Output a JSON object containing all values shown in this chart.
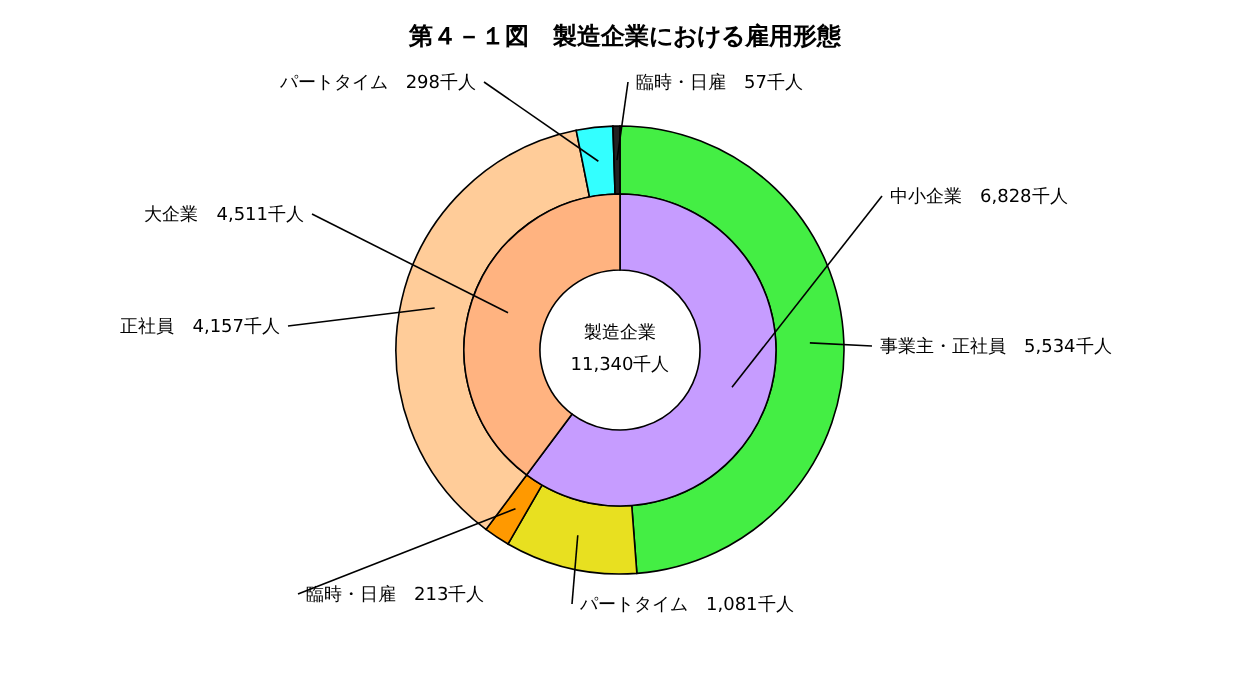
{
  "chart_data": [
    {
      "type": "donut",
      "title": "第４－１図　製造企業における雇用形態",
      "categories": [
        "中小企業",
        "大企業"
      ],
      "values": [
        6828,
        4511
      ],
      "colors": [
        "#c69cff",
        "#ffb380"
      ],
      "value_labels": [
        "6,828千人",
        "4,511千人"
      ],
      "annotations": [
        "製造企業",
        "11,340千人"
      ]
    },
    {
      "type": "donut",
      "categories": [
        "事業主・正社員",
        "パートタイム",
        "臨時・日雇",
        "正社員",
        "パートタイム",
        "臨時・日雇"
      ],
      "values": [
        5534,
        1081,
        213,
        4157,
        298,
        57
      ],
      "colors": [
        "#44ee44",
        "#e8e020",
        "#ff9900",
        "#ffcc99",
        "#33ffff",
        "#222222"
      ],
      "value_labels": [
        "5,534千人",
        "1,081千人",
        "213千人",
        "4,157千人",
        "298千人",
        "57千人"
      ]
    }
  ]
}
